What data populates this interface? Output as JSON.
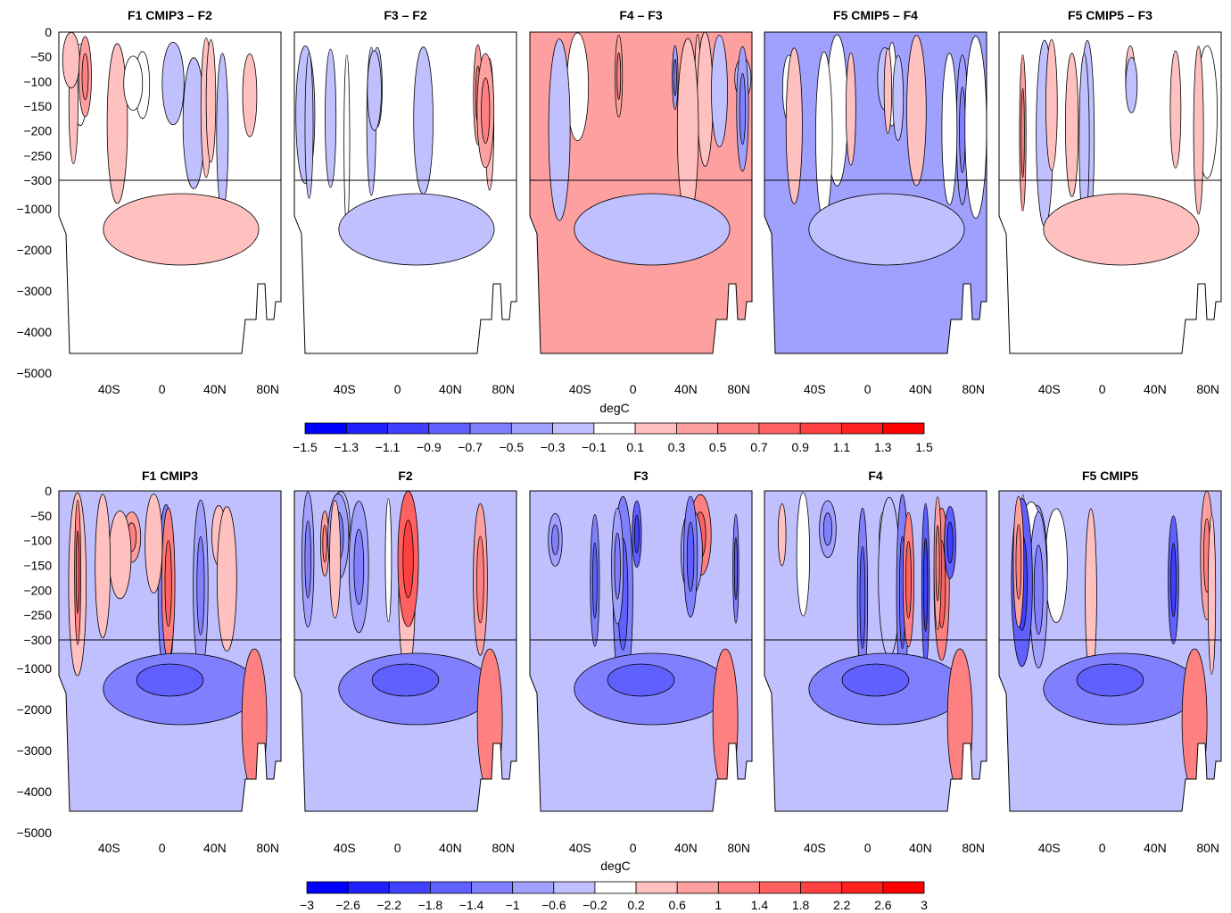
{
  "figure": {
    "colorbar_label": "degC"
  },
  "chart_data": [
    {
      "type": "heatmap",
      "row": "top",
      "panels": [
        "F1 CMIP3 – F2",
        "F3 – F2",
        "F4 – F3",
        "F5 CMIP5 – F4",
        "F5 CMIP5 – F3"
      ],
      "xlabel": "",
      "ylabel": "",
      "x_tick_labels": [
        "40S",
        "0",
        "40N",
        "80N"
      ],
      "x_tick_values": [
        -40,
        0,
        40,
        80
      ],
      "xlim": [
        -78,
        90
      ],
      "y_upper_tick_labels": [
        "0",
        "−50",
        "−100",
        "−150",
        "−200",
        "−250",
        "−300"
      ],
      "y_upper_tick_values": [
        0,
        -50,
        -100,
        -150,
        -200,
        -250,
        -300
      ],
      "y_lower_tick_labels": [
        "−1000",
        "−2000",
        "−3000",
        "−4000",
        "−5000"
      ],
      "y_lower_tick_values": [
        -1000,
        -2000,
        -3000,
        -4000,
        -5000
      ],
      "ylim_upper": [
        -300,
        0
      ],
      "ylim_lower": [
        -5000,
        -300
      ],
      "colorbar": {
        "label": "degC",
        "levels": [
          -1.5,
          -1.3,
          -1.1,
          -0.9,
          -0.7,
          -0.5,
          -0.3,
          -0.1,
          0.1,
          0.3,
          0.5,
          0.7,
          0.9,
          1.1,
          1.3,
          1.5
        ],
        "tick_labels": [
          "−1.5",
          "−1.3",
          "−1.1",
          "−0.9",
          "−0.7",
          "−0.5",
          "−0.3",
          "−0.1",
          "0.1",
          "0.3",
          "0.5",
          "0.7",
          "0.9",
          "1.1",
          "1.3",
          "1.5"
        ]
      },
      "colors": {
        "negative_end": "#0000ff",
        "positive_end": "#ff0000",
        "neutral": "#ffffff",
        "mask": "#ffffff"
      }
    },
    {
      "type": "heatmap",
      "row": "bottom",
      "panels": [
        "F1 CMIP3",
        "F2",
        "F3",
        "F4",
        "F5 CMIP5"
      ],
      "xlabel": "",
      "ylabel": "",
      "x_tick_labels": [
        "40S",
        "0",
        "40N",
        "80N"
      ],
      "x_tick_values": [
        -40,
        0,
        40,
        80
      ],
      "xlim": [
        -78,
        90
      ],
      "y_upper_tick_labels": [
        "0",
        "−50",
        "−100",
        "−150",
        "−200",
        "−250",
        "−300"
      ],
      "y_upper_tick_values": [
        0,
        -50,
        -100,
        -150,
        -200,
        -250,
        -300
      ],
      "y_lower_tick_labels": [
        "−1000",
        "−2000",
        "−3000",
        "−4000",
        "−5000"
      ],
      "y_lower_tick_values": [
        -1000,
        -2000,
        -3000,
        -4000,
        -5000
      ],
      "ylim_upper": [
        -300,
        0
      ],
      "ylim_lower": [
        -5000,
        -300
      ],
      "colorbar": {
        "label": "degC",
        "levels": [
          -3,
          -2.6,
          -2.2,
          -1.8,
          -1.4,
          -1,
          -0.6,
          -0.2,
          0.2,
          0.6,
          1,
          1.4,
          1.8,
          2.2,
          2.6,
          3
        ],
        "tick_labels": [
          "−3",
          "−2.6",
          "−2.2",
          "−1.8",
          "−1.4",
          "−1",
          "−0.6",
          "−0.2",
          "0.2",
          "0.6",
          "1",
          "1.4",
          "1.8",
          "2.2",
          "2.6",
          "3"
        ]
      },
      "colors": {
        "negative_end": "#0000ff",
        "positive_end": "#ff0000",
        "neutral": "#ffffff",
        "mask": "#ffffff"
      }
    }
  ]
}
